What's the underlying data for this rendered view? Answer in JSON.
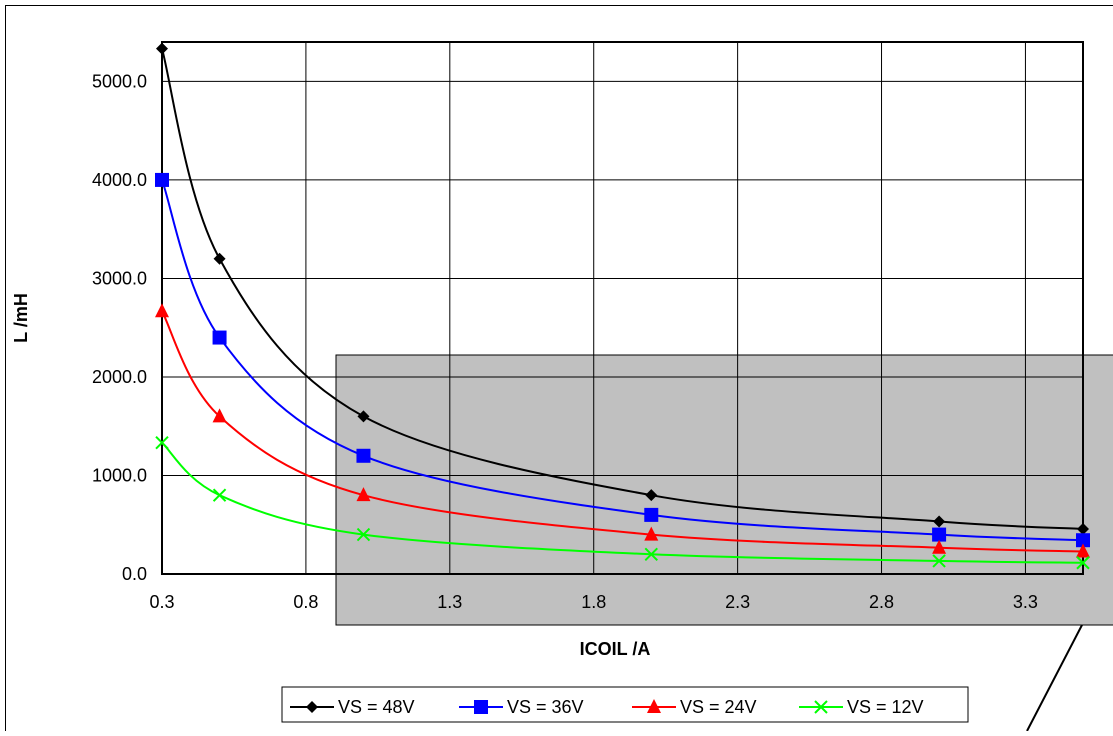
{
  "chart_data": {
    "type": "line",
    "title": "",
    "xlabel": "ICOIL /A",
    "ylabel": "L /mH",
    "xlim": [
      0.3,
      3.5
    ],
    "ylim": [
      0,
      5400
    ],
    "x_ticks": [
      "0.3",
      "0.8",
      "1.3",
      "1.8",
      "2.3",
      "2.8",
      "3.3"
    ],
    "x_tick_values": [
      0.3,
      0.8,
      1.3,
      1.8,
      2.3,
      2.8,
      3.3
    ],
    "y_ticks": [
      "0.0",
      "1000.0",
      "2000.0",
      "3000.0",
      "4000.0",
      "5000.0"
    ],
    "y_tick_values": [
      0,
      1000,
      2000,
      3000,
      4000,
      5000
    ],
    "grid": true,
    "legend_position": "bottom",
    "x": [
      0.3,
      0.5,
      1.0,
      2.0,
      3.0,
      3.5
    ],
    "series": [
      {
        "name": "VS = 48V",
        "color": "#000000",
        "marker": "diamond",
        "values": [
          5333,
          3200,
          1600,
          800,
          533,
          457
        ]
      },
      {
        "name": "VS = 36V",
        "color": "#0000ff",
        "marker": "square",
        "values": [
          4000,
          2400,
          1200,
          600,
          400,
          343
        ]
      },
      {
        "name": "VS = 24V",
        "color": "#ff0000",
        "marker": "triangle",
        "values": [
          2667,
          1600,
          800,
          400,
          267,
          229
        ]
      },
      {
        "name": "VS = 12V",
        "color": "#00ff00",
        "marker": "cross",
        "values": [
          1333,
          800,
          400,
          200,
          133,
          114
        ]
      }
    ],
    "highlight_region_color": "#c0c0c0"
  }
}
